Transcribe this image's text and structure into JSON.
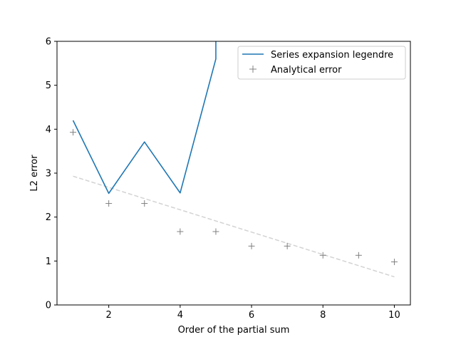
{
  "chart_data": {
    "type": "line",
    "title": "",
    "xlabel": "Order of the partial sum",
    "ylabel": "L2 error",
    "xlim": [
      0.55,
      10.45
    ],
    "ylim": [
      0,
      6
    ],
    "xticks": [
      2,
      4,
      6,
      8,
      10
    ],
    "yticks": [
      0,
      1,
      2,
      3,
      4,
      5,
      6
    ],
    "grid": false,
    "legend_position": "top-right",
    "series": [
      {
        "name": "Series expansion legendre",
        "style": "line",
        "color": "#1f77b4",
        "x": [
          1,
          2,
          3,
          4,
          5,
          5,
          6,
          7,
          8,
          9,
          10
        ],
        "y": [
          4.2,
          2.54,
          3.71,
          2.55,
          5.6,
          6.5,
          6.5,
          6.5,
          6.5,
          6.5,
          6.5
        ]
      },
      {
        "name": "Analytical error",
        "style": "marker-plus",
        "color": "#808080",
        "x": [
          1,
          2,
          3,
          4,
          5,
          6,
          7,
          8,
          9,
          10
        ],
        "y": [
          3.93,
          2.31,
          2.31,
          1.67,
          1.67,
          1.34,
          1.34,
          1.13,
          1.13,
          0.98
        ]
      },
      {
        "style": "dashed-line",
        "color": "#d3d3d3",
        "x": [
          1,
          10
        ],
        "y": [
          2.93,
          0.64
        ]
      }
    ]
  }
}
